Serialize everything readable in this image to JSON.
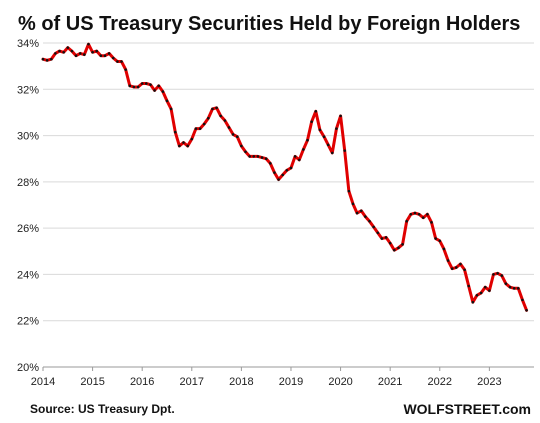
{
  "chart_data": {
    "type": "line",
    "title": "% of US Treasury Securities Held by Foreign Holders",
    "source": "Source: US Treasury  Dpt.",
    "brand": "WOLFSTREET.com",
    "x_ticks": [
      "2014",
      "2015",
      "2016",
      "2017",
      "2018",
      "2019",
      "2020",
      "2021",
      "2022",
      "2023"
    ],
    "y_ticks": [
      "20%",
      "22%",
      "24%",
      "26%",
      "28%",
      "30%",
      "32%",
      "34%"
    ],
    "xlim": [
      2014.0,
      2023.9
    ],
    "ylim": [
      20,
      34
    ],
    "grid": true,
    "line_color": "#e00000",
    "marker_color": "#111111",
    "series": [
      {
        "x": [
          2014.0,
          2014.083,
          2014.167,
          2014.25,
          2014.333,
          2014.417,
          2014.5,
          2014.583,
          2014.667,
          2014.75,
          2014.833,
          2014.917,
          2015.0,
          2015.083,
          2015.167,
          2015.25,
          2015.333,
          2015.417,
          2015.5,
          2015.583,
          2015.667,
          2015.75,
          2015.833,
          2015.917,
          2016.0,
          2016.083,
          2016.167,
          2016.25,
          2016.333,
          2016.417,
          2016.5,
          2016.583,
          2016.667,
          2016.75,
          2016.833,
          2016.917,
          2017.0,
          2017.083,
          2017.167,
          2017.25,
          2017.333,
          2017.417,
          2017.5,
          2017.583,
          2017.667,
          2017.75,
          2017.833,
          2017.917,
          2018.0,
          2018.083,
          2018.167,
          2018.25,
          2018.333,
          2018.417,
          2018.5,
          2018.583,
          2018.667,
          2018.75,
          2018.833,
          2018.917,
          2019.0,
          2019.083,
          2019.167,
          2019.25,
          2019.333,
          2019.417,
          2019.5,
          2019.583,
          2019.667,
          2019.75,
          2019.833,
          2019.917,
          2020.0,
          2020.083,
          2020.167,
          2020.25,
          2020.333,
          2020.417,
          2020.5,
          2020.583,
          2020.667,
          2020.75,
          2020.833,
          2020.917,
          2021.0,
          2021.083,
          2021.167,
          2021.25,
          2021.333,
          2021.417,
          2021.5,
          2021.583,
          2021.667,
          2021.75,
          2021.833,
          2021.917,
          2022.0,
          2022.083,
          2022.167,
          2022.25,
          2022.333,
          2022.417,
          2022.5,
          2022.583,
          2022.667,
          2022.75,
          2022.833,
          2022.917,
          2023.0,
          2023.083,
          2023.167,
          2023.25,
          2023.333,
          2023.417,
          2023.5,
          2023.583,
          2023.667,
          2023.75
        ],
        "y": [
          33.3,
          33.25,
          33.3,
          33.55,
          33.65,
          33.6,
          33.8,
          33.65,
          33.45,
          33.55,
          33.5,
          33.95,
          33.6,
          33.65,
          33.45,
          33.45,
          33.55,
          33.35,
          33.2,
          33.2,
          32.85,
          32.15,
          32.1,
          32.1,
          32.25,
          32.25,
          32.2,
          31.95,
          32.15,
          31.9,
          31.5,
          31.15,
          30.15,
          29.55,
          29.7,
          29.55,
          29.85,
          30.3,
          30.3,
          30.5,
          30.75,
          31.15,
          31.2,
          30.85,
          30.65,
          30.35,
          30.05,
          29.95,
          29.55,
          29.3,
          29.1,
          29.1,
          29.1,
          29.05,
          29.0,
          28.8,
          28.4,
          28.1,
          28.3,
          28.5,
          28.6,
          29.1,
          28.95,
          29.4,
          29.8,
          30.6,
          31.05,
          30.25,
          29.95,
          29.6,
          29.25,
          30.3,
          30.85,
          29.35,
          27.6,
          27.05,
          26.65,
          26.75,
          26.5,
          26.3,
          26.05,
          25.8,
          25.55,
          25.6,
          25.35,
          25.05,
          25.15,
          25.3,
          26.3,
          26.6,
          26.65,
          26.6,
          26.45,
          26.6,
          26.25,
          25.55,
          25.45,
          25.1,
          24.6,
          24.25,
          24.3,
          24.45,
          24.2,
          23.5,
          22.8,
          23.1,
          23.2,
          23.45,
          23.3,
          24.0,
          24.05,
          23.95,
          23.6,
          23.45,
          23.4,
          23.4,
          22.9,
          22.45
        ]
      }
    ]
  }
}
